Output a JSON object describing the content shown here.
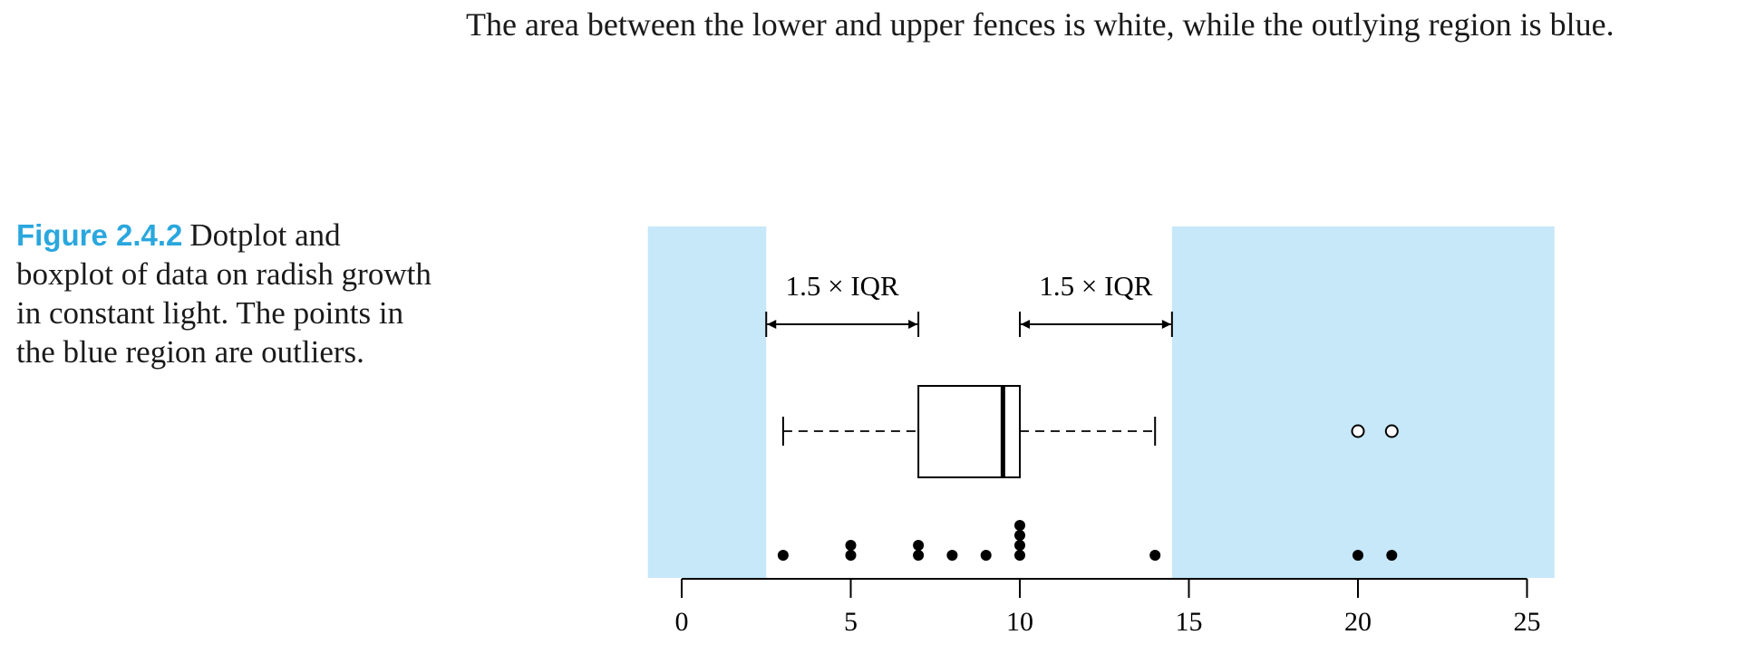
{
  "body_text": "The area between the lower and upper fences is white, while the outlying region is blue.",
  "caption": {
    "label": "Figure 2.4.2",
    "text": "Dotplot and boxplot of data on radish growth in constant light. The points in the blue region are outliers."
  },
  "colors": {
    "outlier_region": "#c6e8f8",
    "caption_label": "#2aa7de",
    "ink": "#000000"
  },
  "chart_data": {
    "type": "boxplot+dotplot",
    "xlim": [
      -1,
      26
    ],
    "ticks": [
      0,
      5,
      10,
      15,
      20,
      25
    ],
    "dots": [
      {
        "x": 3,
        "count": 1
      },
      {
        "x": 5,
        "count": 2
      },
      {
        "x": 7,
        "count": 2
      },
      {
        "x": 8,
        "count": 1
      },
      {
        "x": 9,
        "count": 1
      },
      {
        "x": 10,
        "count": 4
      },
      {
        "x": 14,
        "count": 1
      },
      {
        "x": 20,
        "count": 1
      },
      {
        "x": 21,
        "count": 1
      }
    ],
    "box": {
      "q1": 7,
      "median": 9.5,
      "q3": 10,
      "whisker_low": 3,
      "whisker_high": 14
    },
    "outliers": [
      20,
      21
    ],
    "fences": {
      "lower": 2.5,
      "upper": 14.5
    },
    "annotations": [
      {
        "label": "1.5 × IQR",
        "from": 2.5,
        "to": 7
      },
      {
        "label": "1.5 × IQR",
        "from": 10,
        "to": 14.5
      }
    ]
  }
}
